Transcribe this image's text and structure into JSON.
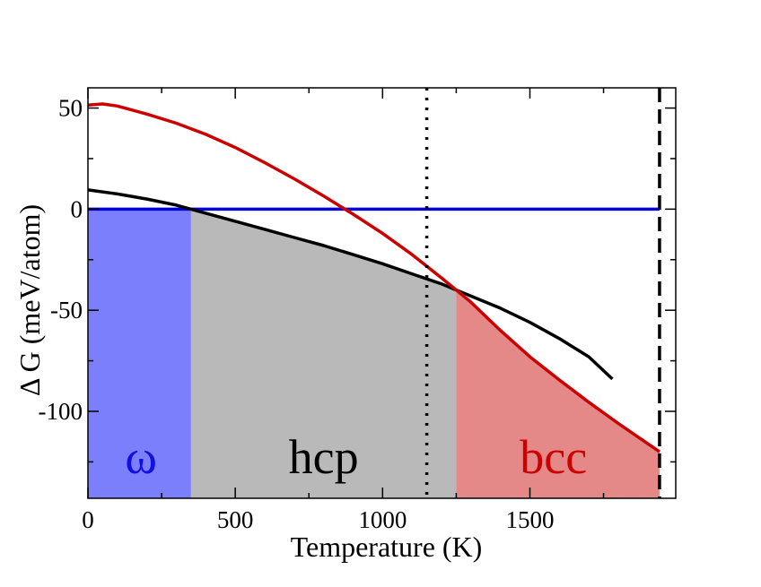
{
  "chart_data": {
    "type": "line",
    "xlabel": "Temperature (K)",
    "ylabel": "Δ G (meV/atom)",
    "xlim": [
      0,
      1995
    ],
    "ylim": [
      -143,
      60
    ],
    "x_ticks": [
      0,
      500,
      1000,
      1500
    ],
    "x_tick_labels": [
      "0",
      "500",
      "1000",
      "1500"
    ],
    "y_ticks": [
      50,
      0,
      -50,
      -100
    ],
    "y_tick_labels": [
      "50",
      "0",
      "-50",
      "-100"
    ],
    "grid": false,
    "series": [
      {
        "color": "#0000dd",
        "x": [
          0,
          1940
        ],
        "y": [
          0,
          0
        ]
      },
      {
        "color": "#000000",
        "x": [
          0,
          100,
          200,
          300,
          350,
          400,
          500,
          600,
          700,
          800,
          900,
          1000,
          1100,
          1200,
          1250,
          1300,
          1400,
          1500,
          1600,
          1700,
          1780
        ],
        "y": [
          9.5,
          7.5,
          5,
          2,
          0,
          -2,
          -6,
          -10,
          -14,
          -18,
          -22.5,
          -27,
          -32,
          -37,
          -40,
          -43,
          -49,
          -56,
          -64,
          -73,
          -84
        ]
      },
      {
        "color": "#cc0000",
        "x": [
          0,
          50,
          100,
          200,
          300,
          400,
          500,
          600,
          700,
          800,
          900,
          1000,
          1100,
          1200,
          1250,
          1300,
          1400,
          1500,
          1600,
          1700,
          1800,
          1940
        ],
        "y": [
          51.5,
          52,
          51,
          47,
          42.5,
          37,
          30.5,
          23,
          15,
          6.5,
          -2.5,
          -12,
          -22.5,
          -34,
          -40,
          -46,
          -60,
          -73,
          -84.5,
          -95.5,
          -106,
          -120
        ]
      }
    ],
    "reference_lines": [
      {
        "x": 1150,
        "style": "dotted",
        "color": "#000000"
      },
      {
        "x": 1940,
        "style": "dashed",
        "color": "#000000"
      }
    ],
    "regions": [
      {
        "label": "ω",
        "x_start": 0,
        "x_end": 350,
        "fill": "#7b7ffb",
        "text_color": "#1010e0",
        "label_x": 180
      },
      {
        "label": "hcp",
        "x_start": 350,
        "x_end": 1250,
        "fill": "#b9b9b9",
        "text_color": "#000000",
        "label_x": 800
      },
      {
        "label": "bcc",
        "x_start": 1250,
        "x_end": 1940,
        "fill": "#e58888",
        "text_color": "#cc0000",
        "label_x": 1580
      }
    ]
  }
}
